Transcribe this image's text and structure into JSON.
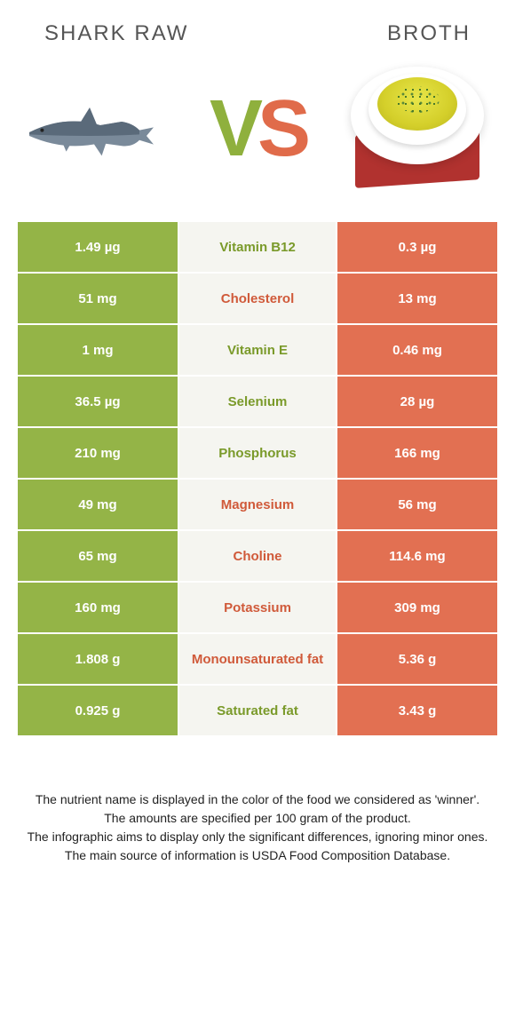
{
  "title_left": "Shark raw",
  "title_right": "Broth",
  "colors": {
    "left_bg": "#94b447",
    "right_bg": "#e27052",
    "mid_bg": "#f5f5f0",
    "left_text": "#7a9a2a",
    "right_text": "#d05a3a"
  },
  "rows": [
    {
      "left": "1.49 µg",
      "label": "Vitamin B12",
      "right": "0.3 µg",
      "winner": "left"
    },
    {
      "left": "51 mg",
      "label": "Cholesterol",
      "right": "13 mg",
      "winner": "right"
    },
    {
      "left": "1 mg",
      "label": "Vitamin E",
      "right": "0.46 mg",
      "winner": "left"
    },
    {
      "left": "36.5 µg",
      "label": "Selenium",
      "right": "28 µg",
      "winner": "left"
    },
    {
      "left": "210 mg",
      "label": "Phosphorus",
      "right": "166 mg",
      "winner": "left"
    },
    {
      "left": "49 mg",
      "label": "Magnesium",
      "right": "56 mg",
      "winner": "right"
    },
    {
      "left": "65 mg",
      "label": "Choline",
      "right": "114.6 mg",
      "winner": "right"
    },
    {
      "left": "160 mg",
      "label": "Potassium",
      "right": "309 mg",
      "winner": "right"
    },
    {
      "left": "1.808 g",
      "label": "Monounsaturated fat",
      "right": "5.36 g",
      "winner": "right"
    },
    {
      "left": "0.925 g",
      "label": "Saturated fat",
      "right": "3.43 g",
      "winner": "left"
    }
  ],
  "footer": [
    "The nutrient name is displayed in the color of the food we considered as 'winner'.",
    "The amounts are specified per 100 gram of the product.",
    "The infographic aims to display only the significant differences, ignoring minor ones.",
    "The main source of information is USDA Food Composition Database."
  ]
}
